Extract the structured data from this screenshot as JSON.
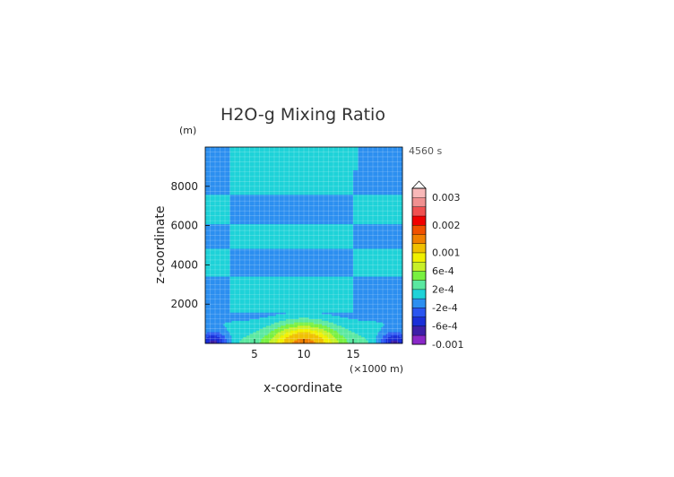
{
  "chart_data": {
    "type": "heatmap",
    "title": "H2O-g Mixing Ratio",
    "time_label": "4560 s",
    "xlabel": "x-coordinate",
    "ylabel": "z-coordinate",
    "x_unit": "(×1000 m)",
    "y_unit": "(m)",
    "xlim": [
      0,
      20
    ],
    "ylim": [
      0,
      10000
    ],
    "x_ticks": [
      5,
      10,
      15
    ],
    "y_ticks": [
      2000,
      4000,
      6000,
      8000
    ],
    "grid": true,
    "colorbar": {
      "position": "right",
      "levels": [
        -0.001,
        -0.0008,
        -0.0006,
        -0.0004,
        -0.0002,
        0,
        0.0002,
        0.0004,
        0.0006,
        0.0008,
        0.001,
        0.0013,
        0.0017,
        0.002,
        0.0023,
        0.0027,
        0.003
      ],
      "colors": [
        "#8a28c8",
        "#3d1fa8",
        "#1a2fd8",
        "#2a55f0",
        "#2c8ff0",
        "#1ed2d8",
        "#5ae8a0",
        "#78f040",
        "#c8f028",
        "#f0f000",
        "#f0c000",
        "#f08000",
        "#f05000",
        "#f00000",
        "#f05050",
        "#f09090",
        "#f8b8b8"
      ],
      "tick_labels": [
        {
          "value": 0.003,
          "label": "0.003"
        },
        {
          "value": 0.002,
          "label": "0.002"
        },
        {
          "value": 0.001,
          "label": "0.001"
        },
        {
          "value": 0.0006,
          "label": "6e-4"
        },
        {
          "value": 0.0002,
          "label": "2e-4"
        },
        {
          "value": -0.0002,
          "label": "-2e-4"
        },
        {
          "value": -0.0006,
          "label": "-6e-4"
        },
        {
          "value": -0.001,
          "label": "-0.001"
        }
      ]
    },
    "field_bands": [
      {
        "z_range": [
          8800,
          10000
        ],
        "center_value": 0.0001,
        "edge_value": -0.0001,
        "center_x": [
          2.5,
          15.5
        ]
      },
      {
        "z_range": [
          7600,
          8800
        ],
        "center_value": 0.0001,
        "edge_value": -0.0001,
        "center_x": [
          2.5,
          15.0
        ]
      },
      {
        "z_range": [
          6100,
          7600
        ],
        "center_value": -0.0001,
        "edge_value": 0.0001,
        "center_x": [
          2.5,
          15.0
        ]
      },
      {
        "z_range": [
          4800,
          6100
        ],
        "center_value": 0.0001,
        "edge_value": -0.0001,
        "center_x": [
          2.5,
          15.0
        ]
      },
      {
        "z_range": [
          3400,
          4800
        ],
        "center_value": -0.0001,
        "edge_value": 0.0001,
        "center_x": [
          2.5,
          15.0
        ]
      },
      {
        "z_range": [
          1600,
          3400
        ],
        "center_value": 0.0001,
        "edge_value": -0.0001,
        "center_x": [
          2.5,
          15.0
        ]
      }
    ],
    "surface_anomalies": [
      {
        "name": "central-moist-plume",
        "x_center": 10,
        "z_top": 1200,
        "peak_value": 0.0012
      },
      {
        "name": "left-dry-pocket",
        "x_center": 0.8,
        "z_top": 700,
        "peak_value": -0.0009
      },
      {
        "name": "right-dry-pocket",
        "x_center": 19.2,
        "z_top": 700,
        "peak_value": -0.0009
      }
    ]
  }
}
